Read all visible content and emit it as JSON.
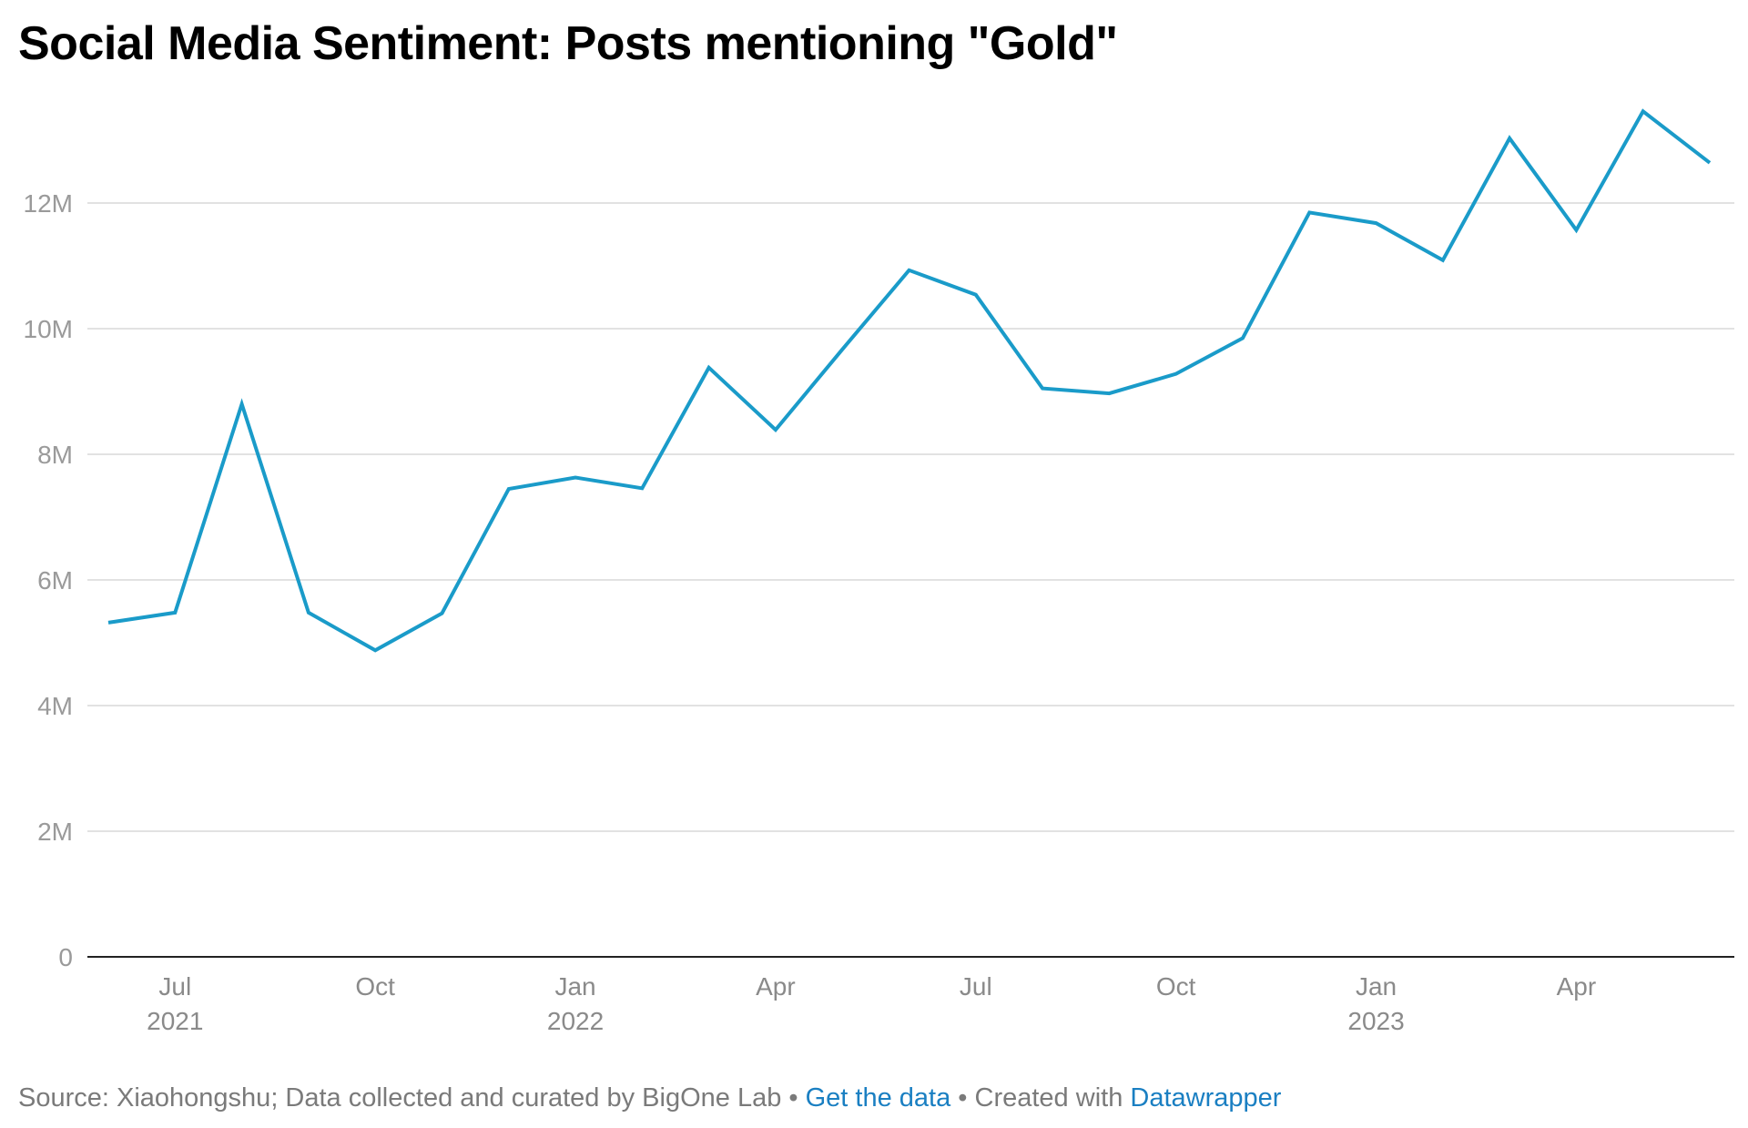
{
  "title": "Social Media Sentiment: Posts mentioning \"Gold\"",
  "footer": {
    "source": "Source: Xiaohongshu; Data collected and curated by BigOne Lab",
    "separator1": " • ",
    "get_data": "Get the data",
    "separator2": " • Created with ",
    "datawrapper": "Datawrapper"
  },
  "colors": {
    "line": "#1a9bc9",
    "grid": "#e2e2e2",
    "baseline": "#222222",
    "link": "#1a7fc2"
  },
  "chart_data": {
    "type": "line",
    "title": "Social Media Sentiment: Posts mentioning \"Gold\"",
    "xlabel": "",
    "ylabel": "",
    "ylim": [
      0,
      14000000
    ],
    "grid": true,
    "y_ticks": [
      {
        "value": 0,
        "label": "0"
      },
      {
        "value": 2000000,
        "label": "2M"
      },
      {
        "value": 4000000,
        "label": "4M"
      },
      {
        "value": 6000000,
        "label": "6M"
      },
      {
        "value": 8000000,
        "label": "8M"
      },
      {
        "value": 10000000,
        "label": "10M"
      },
      {
        "value": 12000000,
        "label": "12M"
      }
    ],
    "x_ticks": [
      {
        "date": "2021-07",
        "label": "Jul",
        "year": "2021"
      },
      {
        "date": "2021-10",
        "label": "Oct",
        "year": ""
      },
      {
        "date": "2022-01",
        "label": "Jan",
        "year": "2022"
      },
      {
        "date": "2022-04",
        "label": "Apr",
        "year": ""
      },
      {
        "date": "2022-07",
        "label": "Jul",
        "year": ""
      },
      {
        "date": "2022-10",
        "label": "Oct",
        "year": ""
      },
      {
        "date": "2023-01",
        "label": "Jan",
        "year": "2023"
      },
      {
        "date": "2023-04",
        "label": "Apr",
        "year": ""
      }
    ],
    "series": [
      {
        "x": [
          "2021-06",
          "2021-07",
          "2021-08",
          "2021-09",
          "2021-10",
          "2021-11",
          "2021-12",
          "2022-01",
          "2022-02",
          "2022-03",
          "2022-04",
          "2022-05",
          "2022-06",
          "2022-07",
          "2022-08",
          "2022-09",
          "2022-10",
          "2022-11",
          "2022-12",
          "2023-01",
          "2023-02",
          "2023-03",
          "2023-04",
          "2023-05",
          "2023-06"
        ],
        "values": [
          5320000,
          5480000,
          8800000,
          5480000,
          4880000,
          5470000,
          7450000,
          7630000,
          7460000,
          9380000,
          8390000,
          9670000,
          10930000,
          10540000,
          9050000,
          8970000,
          9280000,
          9850000,
          11850000,
          11680000,
          11090000,
          13030000,
          11570000,
          13460000,
          12640000
        ]
      }
    ]
  }
}
